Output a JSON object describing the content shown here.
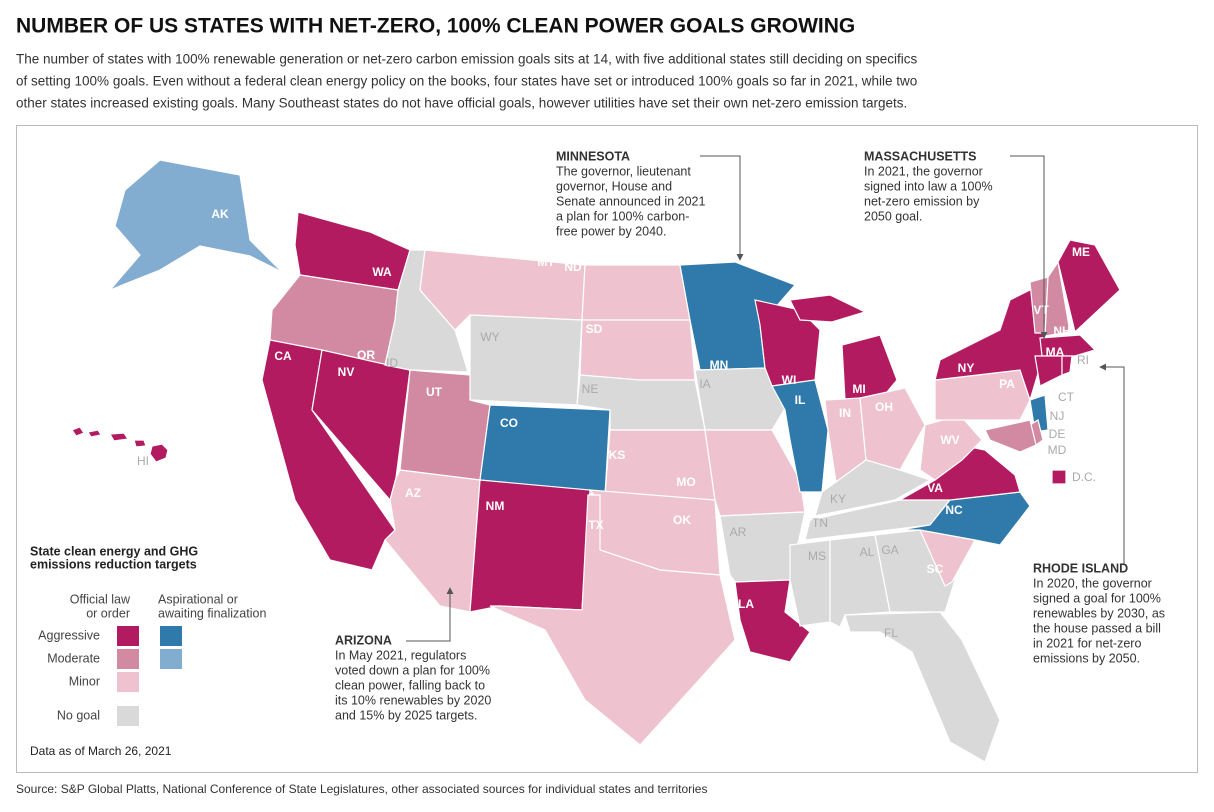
{
  "header": {
    "title": "NUMBER OF US STATES WITH NET-ZERO, 100% CLEAN POWER GOALS GROWING",
    "subtitle": [
      "The number of states with 100% renewable generation or net-zero carbon emission goals sits at 14, with five additional states still deciding on specifics",
      "of setting 100% goals. Even without a federal clean energy policy on the books, four states have set or introduced 100% goals so far in 2021, while two",
      "other states increased existing goals. Many Southeast states do not have official goals, however utilities have set their own net-zero emission targets."
    ]
  },
  "colors": {
    "official_aggressive": "#b31b61",
    "official_moderate": "#d28aa2",
    "official_minor": "#eec3cf",
    "aspirational_aggressive": "#2f7aab",
    "aspirational_moderate": "#83acd1",
    "no_goal": "#d9d9d9"
  },
  "states": [
    {
      "label": "AK",
      "category": "aspirational_moderate"
    },
    {
      "label": "HI",
      "category": "official_aggressive"
    },
    {
      "label": "WA",
      "category": "official_aggressive"
    },
    {
      "label": "OR",
      "category": "official_moderate"
    },
    {
      "label": "CA",
      "category": "official_aggressive"
    },
    {
      "label": "NV",
      "category": "official_aggressive"
    },
    {
      "label": "ID",
      "category": "no_goal"
    },
    {
      "label": "MT",
      "category": "official_minor"
    },
    {
      "label": "WY",
      "category": "no_goal"
    },
    {
      "label": "UT",
      "category": "official_moderate"
    },
    {
      "label": "CO",
      "category": "aspirational_aggressive"
    },
    {
      "label": "AZ",
      "category": "official_minor"
    },
    {
      "label": "NM",
      "category": "official_aggressive"
    },
    {
      "label": "ND",
      "category": "official_minor"
    },
    {
      "label": "SD",
      "category": "official_minor"
    },
    {
      "label": "NE",
      "category": "no_goal"
    },
    {
      "label": "KS",
      "category": "official_minor"
    },
    {
      "label": "OK",
      "category": "official_minor"
    },
    {
      "label": "TX",
      "category": "official_minor"
    },
    {
      "label": "MN",
      "category": "aspirational_aggressive"
    },
    {
      "label": "IA",
      "category": "no_goal"
    },
    {
      "label": "MO",
      "category": "official_minor"
    },
    {
      "label": "AR",
      "category": "no_goal"
    },
    {
      "label": "LA",
      "category": "official_aggressive"
    },
    {
      "label": "WI",
      "category": "official_aggressive"
    },
    {
      "label": "IL",
      "category": "aspirational_aggressive"
    },
    {
      "label": "MI",
      "category": "official_aggressive"
    },
    {
      "label": "IN",
      "category": "official_minor"
    },
    {
      "label": "OH",
      "category": "official_minor"
    },
    {
      "label": "KY",
      "category": "no_goal"
    },
    {
      "label": "TN",
      "category": "no_goal"
    },
    {
      "label": "MS",
      "category": "no_goal"
    },
    {
      "label": "AL",
      "category": "no_goal"
    },
    {
      "label": "GA",
      "category": "no_goal"
    },
    {
      "label": "FL",
      "category": "no_goal"
    },
    {
      "label": "SC",
      "category": "official_minor"
    },
    {
      "label": "NC",
      "category": "aspirational_aggressive"
    },
    {
      "label": "VA",
      "category": "official_aggressive"
    },
    {
      "label": "WV",
      "category": "official_minor"
    },
    {
      "label": "PA",
      "category": "official_minor"
    },
    {
      "label": "NY",
      "category": "official_aggressive"
    },
    {
      "label": "VT",
      "category": "official_moderate"
    },
    {
      "label": "NH",
      "category": "official_moderate"
    },
    {
      "label": "ME",
      "category": "official_aggressive"
    },
    {
      "label": "MA",
      "category": "official_aggressive"
    },
    {
      "label": "CT",
      "category": "official_aggressive"
    },
    {
      "label": "RI",
      "category": "official_aggressive"
    },
    {
      "label": "NJ",
      "category": "aspirational_aggressive"
    },
    {
      "label": "DE",
      "category": "official_moderate"
    },
    {
      "label": "MD",
      "category": "official_moderate"
    },
    {
      "label": "D.C.",
      "category": "official_aggressive"
    }
  ],
  "annotations": [
    {
      "title": "MINNESOTA",
      "lines": [
        "The governor, lieutenant",
        "governor, House and",
        "Senate announced in 2021",
        "a plan for 100% carbon-",
        "free power by 2040."
      ]
    },
    {
      "title": "MASSACHUSETTS",
      "lines": [
        "In 2021, the governor",
        "signed into law a 100%",
        "net-zero emission by",
        "2050 goal."
      ]
    },
    {
      "title": "RHODE ISLAND",
      "lines": [
        "In 2020, the governor",
        "signed a goal for 100%",
        "renewables by 2030, as",
        "the house passed a bill",
        "in 2021 for net-zero",
        "emissions by 2050."
      ]
    },
    {
      "title": "ARIZONA",
      "lines": [
        "In May 2021, regulators",
        "voted down a plan for 100%",
        "clean power, falling back to",
        "its 10% renewables by 2020",
        "and 15% by 2025 targets."
      ]
    }
  ],
  "legend": {
    "title": [
      "State clean energy and GHG",
      "emissions reduction targets"
    ],
    "column_headers": [
      [
        "Official law",
        "or order"
      ],
      [
        "Aspirational or",
        "awaiting finalization"
      ]
    ],
    "rows": [
      {
        "label": "Aggressive",
        "swatches": [
          "official_aggressive",
          "aspirational_aggressive"
        ]
      },
      {
        "label": "Moderate",
        "swatches": [
          "official_moderate",
          "aspirational_moderate"
        ]
      },
      {
        "label": "Minor",
        "swatches": [
          "official_minor"
        ]
      },
      {
        "label": "No goal",
        "swatches": [
          "no_goal"
        ]
      }
    ]
  },
  "note": "Data as of March 26, 2021",
  "source": "Source: S&P Global Platts, National Conference of State Legislatures, other associated sources for individual states and territories"
}
